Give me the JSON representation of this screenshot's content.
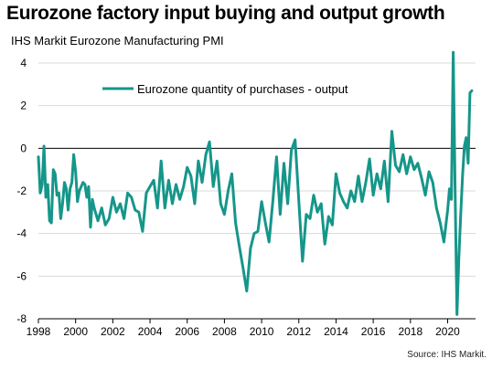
{
  "title": "Eurozone factory input buying and output growth",
  "subtitle": "IHS Markit  Eurozone Manufacturing  PMI",
  "source": "Source: IHS Markit.",
  "colors": {
    "series": "#16968a",
    "grid": "#d9d9d9",
    "axis": "#000000"
  },
  "chart_data": {
    "type": "line",
    "title": "Eurozone factory input buying and output growth",
    "subtitle": "IHS Markit  Eurozone Manufacturing  PMI",
    "xlim": [
      1998,
      2021.5
    ],
    "ylim": [
      -8,
      4
    ],
    "x_ticks": [
      1998,
      2000,
      2002,
      2004,
      2006,
      2008,
      2010,
      2012,
      2014,
      2016,
      2018,
      2020
    ],
    "y_ticks": [
      4,
      2,
      0,
      -2,
      -4,
      -6,
      -8
    ],
    "grid": "horizontal",
    "legend_position": "top-center",
    "series": [
      {
        "name": "Eurozone quantity of purchases - output",
        "x": [
          1998.0,
          1998.1,
          1998.2,
          1998.3,
          1998.4,
          1998.5,
          1998.6,
          1998.7,
          1998.8,
          1998.9,
          1999.0,
          1999.1,
          1999.2,
          1999.3,
          1999.4,
          1999.5,
          1999.6,
          1999.7,
          1999.8,
          1999.9,
          2000.0,
          2000.1,
          2000.2,
          2000.3,
          2000.4,
          2000.5,
          2000.6,
          2000.7,
          2000.8,
          2000.9,
          2001.0,
          2001.2,
          2001.4,
          2001.6,
          2001.8,
          2002.0,
          2002.2,
          2002.4,
          2002.6,
          2002.8,
          2003.0,
          2003.2,
          2003.4,
          2003.6,
          2003.8,
          2004.0,
          2004.2,
          2004.4,
          2004.6,
          2004.8,
          2005.0,
          2005.2,
          2005.4,
          2005.6,
          2005.8,
          2006.0,
          2006.2,
          2006.4,
          2006.6,
          2006.8,
          2007.0,
          2007.2,
          2007.4,
          2007.6,
          2007.8,
          2008.0,
          2008.2,
          2008.4,
          2008.6,
          2008.8,
          2009.0,
          2009.2,
          2009.4,
          2009.6,
          2009.8,
          2010.0,
          2010.2,
          2010.4,
          2010.6,
          2010.8,
          2011.0,
          2011.2,
          2011.4,
          2011.6,
          2011.8,
          2012.0,
          2012.2,
          2012.4,
          2012.6,
          2012.8,
          2013.0,
          2013.2,
          2013.4,
          2013.6,
          2013.8,
          2014.0,
          2014.2,
          2014.4,
          2014.6,
          2014.8,
          2015.0,
          2015.2,
          2015.4,
          2015.6,
          2015.8,
          2016.0,
          2016.2,
          2016.4,
          2016.6,
          2016.8,
          2017.0,
          2017.2,
          2017.4,
          2017.6,
          2017.8,
          2018.0,
          2018.2,
          2018.4,
          2018.6,
          2018.8,
          2019.0,
          2019.2,
          2019.4,
          2019.6,
          2019.8,
          2020.0,
          2020.1,
          2020.2,
          2020.3,
          2020.4,
          2020.5,
          2020.6,
          2020.7,
          2020.8,
          2020.9,
          2021.0,
          2021.1,
          2021.2,
          2021.3
        ],
        "values": [
          -0.4,
          -2.1,
          -1.7,
          0.1,
          -2.3,
          -1.7,
          -3.4,
          -3.5,
          -1.0,
          -1.2,
          -2.2,
          -2.1,
          -3.3,
          -2.6,
          -1.6,
          -1.9,
          -2.9,
          -1.9,
          -1.6,
          -0.3,
          -1.1,
          -2.5,
          -2.0,
          -1.8,
          -1.6,
          -1.7,
          -2.3,
          -1.8,
          -3.7,
          -2.4,
          -2.8,
          -3.4,
          -2.8,
          -3.6,
          -3.3,
          -2.3,
          -3.0,
          -2.6,
          -3.3,
          -2.1,
          -2.3,
          -2.9,
          -3.0,
          -3.9,
          -2.1,
          -1.8,
          -1.5,
          -2.8,
          -0.6,
          -2.8,
          -1.5,
          -2.6,
          -1.7,
          -2.4,
          -1.8,
          -0.9,
          -1.3,
          -2.6,
          -0.6,
          -1.6,
          -0.3,
          0.3,
          -1.8,
          -0.6,
          -2.6,
          -3.1,
          -2.0,
          -1.2,
          -3.5,
          -4.6,
          -5.6,
          -6.7,
          -4.7,
          -4.0,
          -3.9,
          -2.5,
          -3.5,
          -4.4,
          -2.5,
          -0.4,
          -3.1,
          -0.7,
          -2.6,
          -0.1,
          0.4,
          -2.5,
          -5.3,
          -3.1,
          -3.3,
          -2.2,
          -3.0,
          -2.6,
          -4.5,
          -3.2,
          -3.6,
          -1.2,
          -2.1,
          -2.5,
          -2.8,
          -2.0,
          -2.5,
          -1.3,
          -2.5,
          -1.6,
          -0.5,
          -2.2,
          -1.2,
          -1.9,
          -0.6,
          -2.5,
          0.8,
          -0.8,
          -1.1,
          -0.3,
          -1.2,
          -0.4,
          -1.0,
          -0.7,
          -1.4,
          -2.2,
          -1.1,
          -1.6,
          -2.8,
          -3.5,
          -4.4,
          -2.9,
          -1.9,
          -2.4,
          4.5,
          -1.8,
          -7.8,
          -5.2,
          -3.2,
          -1.3,
          0.1,
          0.5,
          -0.7,
          2.6,
          2.7
        ]
      }
    ]
  }
}
